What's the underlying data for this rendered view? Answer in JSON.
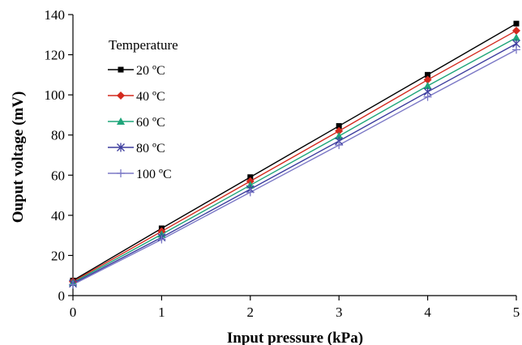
{
  "chart_data": {
    "type": "line",
    "xlabel": "Input pressure (kPa)",
    "ylabel": "Ouput voltage (mV)",
    "xlim": [
      0,
      5
    ],
    "ylim": [
      0,
      140
    ],
    "xticks": [
      0,
      1,
      2,
      3,
      4,
      5
    ],
    "yticks": [
      0,
      20,
      40,
      60,
      80,
      100,
      120,
      140
    ],
    "grid": false,
    "legend": {
      "title": "Temperature",
      "placement": "top-left"
    },
    "x": [
      0,
      1,
      2,
      3,
      4,
      5
    ],
    "series": [
      {
        "name": "20 ºC",
        "color": "#000000",
        "marker": "square",
        "values": [
          7.5,
          33.5,
          59.0,
          84.5,
          110.0,
          135.5
        ]
      },
      {
        "name": "40 ºC",
        "color": "#d42a1e",
        "marker": "diamond",
        "values": [
          7.0,
          32.0,
          57.0,
          82.0,
          107.5,
          132.0
        ]
      },
      {
        "name": "60 ºC",
        "color": "#1fa57a",
        "marker": "triangle",
        "values": [
          6.5,
          30.5,
          55.0,
          79.5,
          104.5,
          128.5
        ]
      },
      {
        "name": "80 ºC",
        "color": "#3d3d9e",
        "marker": "asterisk",
        "values": [
          6.0,
          29.0,
          53.0,
          77.0,
          101.5,
          125.5
        ]
      },
      {
        "name": "100 ºC",
        "color": "#7b78c6",
        "marker": "plus",
        "values": [
          5.5,
          28.0,
          51.5,
          75.0,
          99.0,
          122.5
        ]
      }
    ]
  }
}
